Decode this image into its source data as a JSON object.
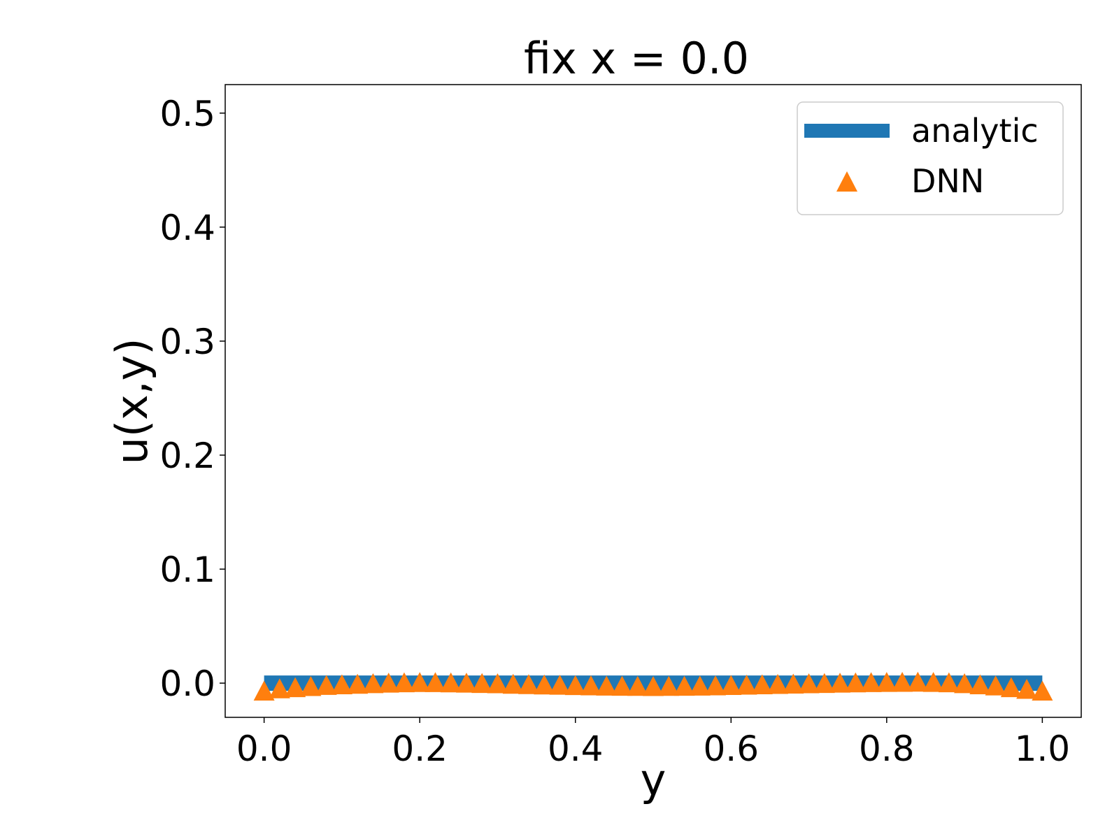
{
  "chart_data": {
    "type": "line",
    "title": "fix x = 0.0",
    "xlabel": "y",
    "ylabel": "u(x,y)",
    "xlim": [
      -0.05,
      1.05
    ],
    "ylim": [
      -0.03,
      0.525
    ],
    "x_ticks": [
      {
        "value": 0.0,
        "label": "0.0"
      },
      {
        "value": 0.2,
        "label": "0.2"
      },
      {
        "value": 0.4,
        "label": "0.4"
      },
      {
        "value": 0.6,
        "label": "0.6"
      },
      {
        "value": 0.8,
        "label": "0.8"
      },
      {
        "value": 1.0,
        "label": "1.0"
      }
    ],
    "y_ticks": [
      {
        "value": 0.0,
        "label": "0.0"
      },
      {
        "value": 0.1,
        "label": "0.1"
      },
      {
        "value": 0.2,
        "label": "0.2"
      },
      {
        "value": 0.3,
        "label": "0.3"
      },
      {
        "value": 0.4,
        "label": "0.4"
      },
      {
        "value": 0.5,
        "label": "0.5"
      }
    ],
    "grid": false,
    "legend": {
      "placement": "top-right"
    },
    "series": [
      {
        "name": "analytic",
        "style": "thick-line",
        "color": "#1f77b4",
        "x": [
          0.0,
          1.0
        ],
        "y": [
          0.0,
          0.0
        ]
      },
      {
        "name": "DNN",
        "style": "triangle-markers",
        "color": "#ff7f0e",
        "x": [
          0.0,
          0.02,
          0.04,
          0.06,
          0.08,
          0.1,
          0.12,
          0.14,
          0.16,
          0.18,
          0.2,
          0.22,
          0.24,
          0.26,
          0.28,
          0.3,
          0.32,
          0.34,
          0.36,
          0.38,
          0.4,
          0.42,
          0.44,
          0.46,
          0.48,
          0.5,
          0.52,
          0.54,
          0.56,
          0.58,
          0.6,
          0.62,
          0.64,
          0.66,
          0.68,
          0.7,
          0.72,
          0.74,
          0.76,
          0.78,
          0.8,
          0.82,
          0.84,
          0.86,
          0.88,
          0.9,
          0.92,
          0.94,
          0.96,
          0.98,
          1.0
        ],
        "y": [
          -0.007,
          -0.005,
          -0.004,
          -0.003,
          -0.002,
          -0.0015,
          -0.001,
          -0.0005,
          0.0,
          0.0003,
          0.0005,
          0.0004,
          0.0002,
          0.0,
          -0.0003,
          -0.0006,
          -0.001,
          -0.0013,
          -0.0016,
          -0.0019,
          -0.0022,
          -0.0024,
          -0.0026,
          -0.0028,
          -0.0029,
          -0.003,
          -0.0029,
          -0.0028,
          -0.0026,
          -0.0024,
          -0.0021,
          -0.0018,
          -0.0015,
          -0.0012,
          -0.0009,
          -0.0006,
          -0.0003,
          0.0,
          0.0002,
          0.0004,
          0.0006,
          0.0007,
          0.0008,
          0.0006,
          0.0003,
          -0.0005,
          -0.0015,
          -0.0025,
          -0.004,
          -0.0055,
          -0.007
        ]
      }
    ]
  }
}
